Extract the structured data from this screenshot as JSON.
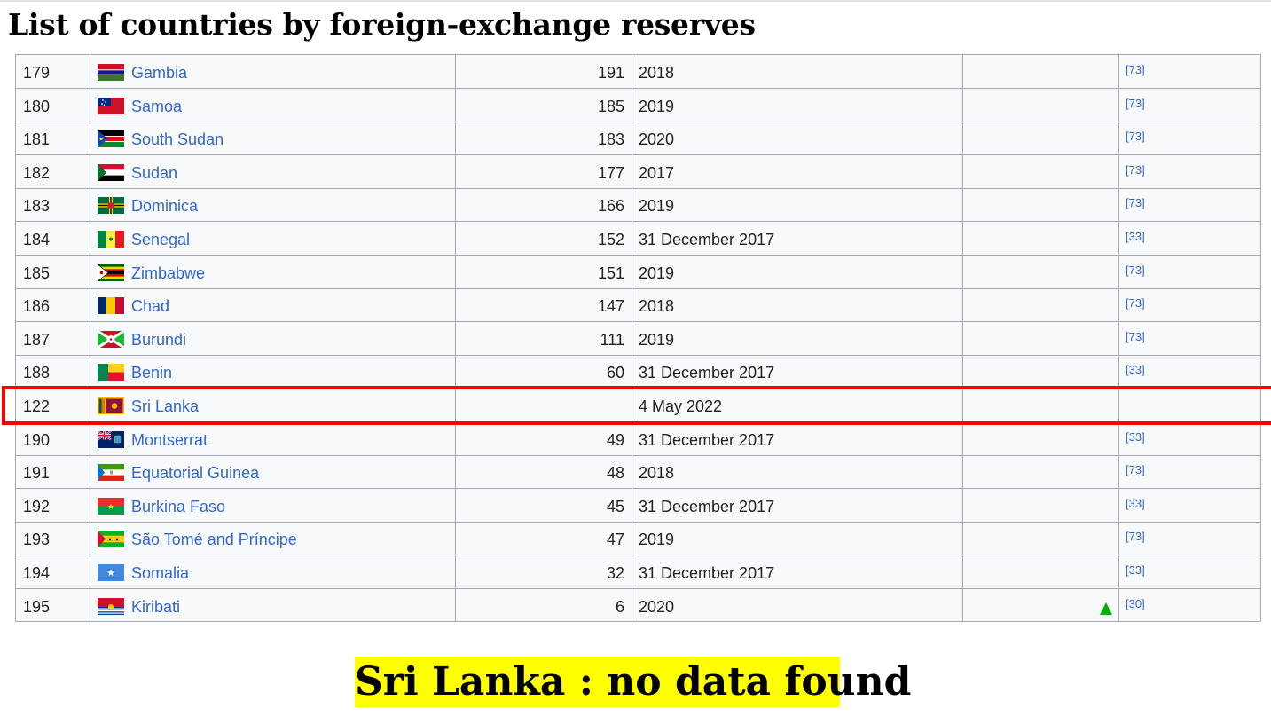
{
  "page": {
    "title": "List of countries by foreign-exchange reserves",
    "caption": "Sri Lanka : no data found"
  },
  "colors": {
    "link": "#3366cc",
    "highlight_border": "#ff0000",
    "caption_background": "#ffff00",
    "arrow_up": "#00af00"
  },
  "table": {
    "rows": [
      {
        "rank": "179",
        "country": "Gambia",
        "flag": "gambia-flag-icon",
        "value": "191",
        "date": "2018",
        "change": "",
        "ref": "[73]"
      },
      {
        "rank": "180",
        "country": "Samoa",
        "flag": "samoa-flag-icon",
        "value": "185",
        "date": "2019",
        "change": "",
        "ref": "[73]"
      },
      {
        "rank": "181",
        "country": "South Sudan",
        "flag": "south-sudan-flag-icon",
        "value": "183",
        "date": "2020",
        "change": "",
        "ref": "[73]"
      },
      {
        "rank": "182",
        "country": "Sudan",
        "flag": "sudan-flag-icon",
        "value": "177",
        "date": "2017",
        "change": "",
        "ref": "[73]"
      },
      {
        "rank": "183",
        "country": "Dominica",
        "flag": "dominica-flag-icon",
        "value": "166",
        "date": "2019",
        "change": "",
        "ref": "[73]"
      },
      {
        "rank": "184",
        "country": "Senegal",
        "flag": "senegal-flag-icon",
        "value": "152",
        "date": "31 December 2017",
        "change": "",
        "ref": "[33]"
      },
      {
        "rank": "185",
        "country": "Zimbabwe",
        "flag": "zimbabwe-flag-icon",
        "value": "151",
        "date": "2019",
        "change": "",
        "ref": "[73]"
      },
      {
        "rank": "186",
        "country": "Chad",
        "flag": "chad-flag-icon",
        "value": "147",
        "date": "2018",
        "change": "",
        "ref": "[73]"
      },
      {
        "rank": "187",
        "country": "Burundi",
        "flag": "burundi-flag-icon",
        "value": "111",
        "date": "2019",
        "change": "",
        "ref": "[73]"
      },
      {
        "rank": "188",
        "country": "Benin",
        "flag": "benin-flag-icon",
        "value": "60",
        "date": "31 December 2017",
        "change": "",
        "ref": "[33]"
      },
      {
        "rank": "122",
        "country": "Sri Lanka",
        "flag": "sri-lanka-flag-icon",
        "value": "",
        "date": "4 May 2022",
        "change": "",
        "ref": ""
      },
      {
        "rank": "190",
        "country": "Montserrat",
        "flag": "montserrat-flag-icon",
        "value": "49",
        "date": "31 December 2017",
        "change": "",
        "ref": "[33]"
      },
      {
        "rank": "191",
        "country": "Equatorial Guinea",
        "flag": "equatorial-guinea-flag-icon",
        "value": "48",
        "date": "2018",
        "change": "",
        "ref": "[73]"
      },
      {
        "rank": "192",
        "country": "Burkina Faso",
        "flag": "burkina-faso-flag-icon",
        "value": "45",
        "date": "31 December 2017",
        "change": "",
        "ref": "[33]"
      },
      {
        "rank": "193",
        "country": "São Tomé and Príncipe",
        "flag": "sao-tome-and-principe-flag-icon",
        "value": "47",
        "date": "2019",
        "change": "",
        "ref": "[73]"
      },
      {
        "rank": "194",
        "country": "Somalia",
        "flag": "somalia-flag-icon",
        "value": "32",
        "date": "31 December 2017",
        "change": "",
        "ref": "[33]"
      },
      {
        "rank": "195",
        "country": "Kiribati",
        "flag": "kiribati-flag-icon",
        "value": "6",
        "date": "2020",
        "change": "up-arrow-icon",
        "ref": "[30]"
      }
    ]
  }
}
